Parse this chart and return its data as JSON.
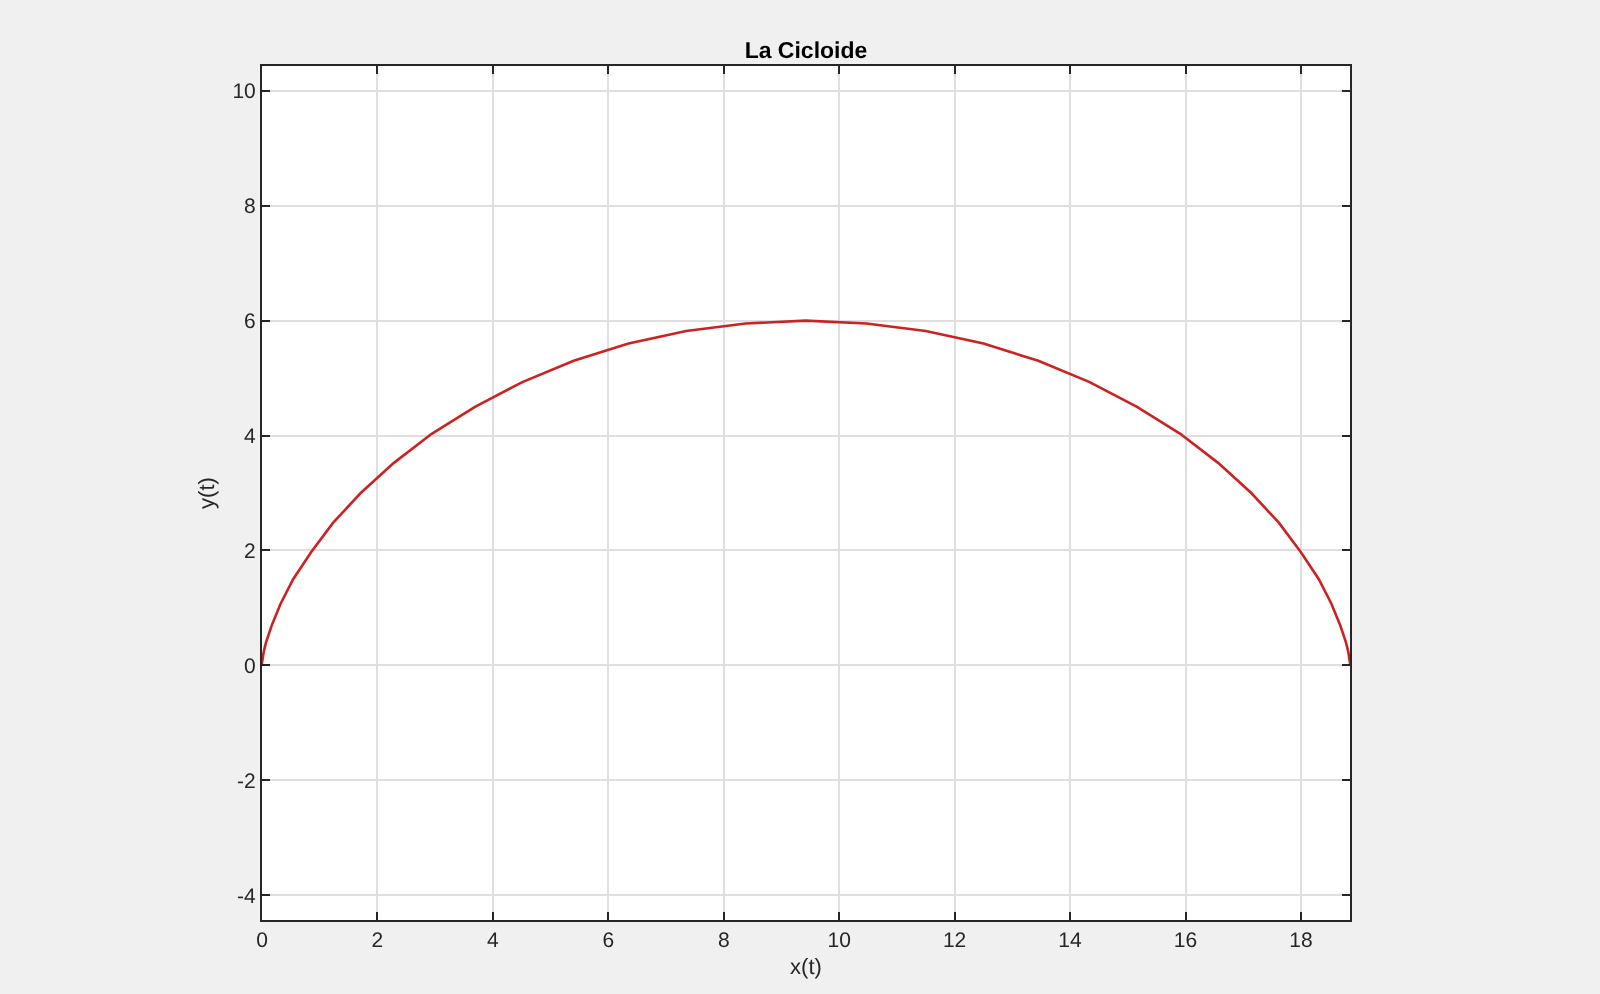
{
  "chart_data": {
    "type": "line",
    "title": "La Cicloide",
    "xlabel": "x(t)",
    "ylabel": "y(t)",
    "x": [
      0,
      0.0,
      0.01,
      0.02,
      0.04,
      0.07,
      0.17,
      0.32,
      0.54,
      0.85,
      1.23,
      1.71,
      2.28,
      2.94,
      3.69,
      4.51,
      5.4,
      6.35,
      7.35,
      8.38,
      9.42,
      10.47,
      11.5,
      12.5,
      13.45,
      14.34,
      15.16,
      15.91,
      16.57,
      17.14,
      17.62,
      18.0,
      18.31,
      18.53,
      18.68,
      18.78,
      18.81,
      18.83,
      18.84,
      18.85,
      18.85
    ],
    "series": [
      {
        "color": "#cc2222",
        "values": [
          0,
          0.05,
          0.1,
          0.18,
          0.28,
          0.4,
          0.7,
          1.07,
          1.5,
          1.97,
          2.48,
          3.0,
          3.52,
          4.03,
          4.5,
          4.93,
          5.3,
          5.6,
          5.82,
          5.95,
          6.0,
          5.95,
          5.82,
          5.6,
          5.3,
          4.93,
          4.5,
          4.03,
          3.52,
          3.0,
          2.48,
          1.97,
          1.5,
          1.07,
          0.7,
          0.4,
          0.28,
          0.18,
          0.1,
          0.05,
          0
        ]
      }
    ],
    "xlim": [
      0,
      18.85
    ],
    "ylim": [
      -4.43,
      10.43
    ],
    "xticks": [
      0,
      2,
      4,
      6,
      8,
      10,
      12,
      14,
      16,
      18
    ],
    "yticks": [
      -4,
      -2,
      0,
      2,
      4,
      6,
      8,
      10
    ],
    "grid": true
  }
}
